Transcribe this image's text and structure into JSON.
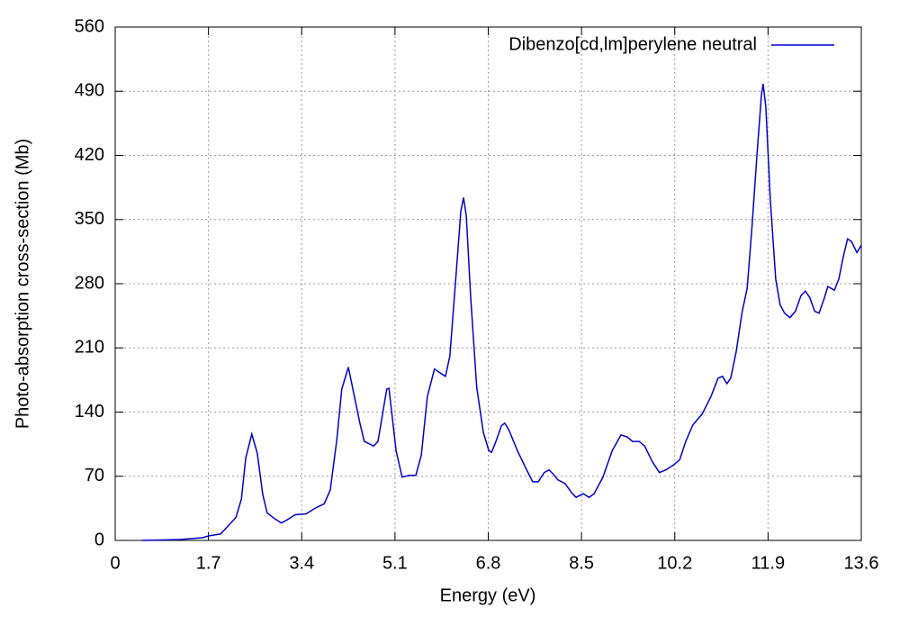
{
  "chart_data": {
    "type": "line",
    "xlabel": "Energy (eV)",
    "ylabel": "Photo-absorption cross-section (Mb)",
    "xlim": [
      0,
      13.6
    ],
    "xticks": [
      0,
      1.7,
      3.4,
      5.1,
      6.8,
      8.5,
      10.2,
      11.9,
      13.6
    ],
    "ylim": [
      0,
      560
    ],
    "yticks": [
      0,
      70,
      140,
      210,
      280,
      350,
      420,
      490,
      560
    ],
    "grid": true,
    "legend": "upper right",
    "x": [
      0.49,
      1.18,
      1.59,
      1.71,
      1.92,
      2.03,
      2.2,
      2.3,
      2.38,
      2.49,
      2.59,
      2.69,
      2.77,
      2.9,
      3.03,
      3.15,
      3.28,
      3.48,
      3.64,
      3.81,
      3.92,
      4.04,
      4.13,
      4.25,
      4.46,
      4.54,
      4.71,
      4.79,
      4.95,
      4.99,
      5.12,
      5.23,
      5.36,
      5.48,
      5.58,
      5.69,
      5.82,
      5.94,
      6.02,
      6.1,
      6.22,
      6.3,
      6.35,
      6.4,
      6.48,
      6.59,
      6.71,
      6.81,
      6.86,
      6.94,
      7.04,
      7.1,
      7.18,
      7.33,
      7.5,
      7.61,
      7.71,
      7.82,
      7.91,
      7.99,
      8.07,
      8.2,
      8.32,
      8.4,
      8.53,
      8.64,
      8.73,
      8.89,
      9.06,
      9.22,
      9.33,
      9.43,
      9.55,
      9.65,
      9.79,
      9.92,
      10.04,
      10.17,
      10.29,
      10.4,
      10.53,
      10.7,
      10.86,
      10.99,
      11.07,
      11.15,
      11.22,
      11.32,
      11.43,
      11.52,
      11.61,
      11.7,
      11.78,
      11.81,
      11.86,
      11.94,
      12.04,
      12.12,
      12.2,
      12.3,
      12.4,
      12.5,
      12.58,
      12.66,
      12.75,
      12.83,
      12.93,
      12.99,
      13.11,
      13.19,
      13.27,
      13.35,
      13.42,
      13.52,
      13.6
    ],
    "series": [
      {
        "name": "Dibenzo[cd,lm]perylene neutral",
        "color": "#0000cc",
        "values": [
          0,
          1,
          3,
          5,
          7,
          14,
          25,
          45,
          90,
          116,
          95,
          50,
          30,
          24,
          19,
          23,
          28,
          29,
          35,
          40,
          55,
          110,
          165,
          189,
          128,
          108,
          103,
          108,
          165,
          166,
          98,
          69,
          71,
          71,
          93,
          157,
          187,
          182,
          179,
          201,
          295,
          359,
          374,
          354,
          265,
          167,
          118,
          98,
          96,
          108,
          125,
          128,
          120,
          98,
          77,
          64,
          64,
          74,
          77,
          72,
          66,
          62,
          52,
          47,
          51,
          47,
          51,
          69,
          98,
          115,
          113,
          108,
          108,
          103,
          86,
          74,
          77,
          82,
          88,
          108,
          126,
          138,
          157,
          177,
          179,
          171,
          177,
          206,
          250,
          275,
          344,
          422,
          486,
          498,
          473,
          373,
          285,
          257,
          248,
          243,
          250,
          267,
          272,
          265,
          250,
          248,
          265,
          277,
          273,
          285,
          309,
          329,
          326,
          314,
          322
        ]
      }
    ]
  }
}
